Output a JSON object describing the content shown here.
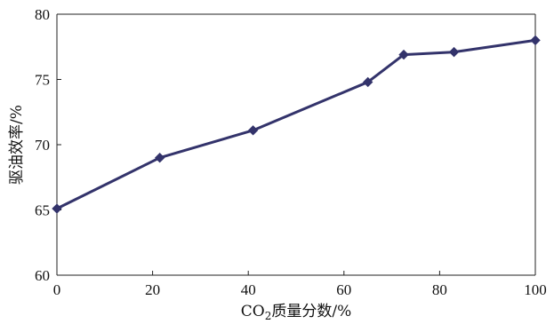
{
  "chart_data": {
    "type": "line",
    "title": "",
    "xlabel_prefix": "CO",
    "xlabel_subscript": "2",
    "xlabel_suffix": "质量分数/%",
    "ylabel": "驱油效率/%",
    "xlim": [
      0,
      100
    ],
    "ylim": [
      60,
      80
    ],
    "x_ticks": [
      0,
      20,
      40,
      60,
      80,
      100
    ],
    "y_ticks": [
      60,
      65,
      70,
      75,
      80
    ],
    "x_tick_labels": [
      "0",
      "20",
      "40",
      "60",
      "80",
      "100"
    ],
    "y_tick_labels": [
      "60",
      "65",
      "70",
      "75",
      "80"
    ],
    "grid": false,
    "legend": "none",
    "series": [
      {
        "x": [
          0,
          21.5,
          41,
          65,
          72.5,
          83,
          100
        ],
        "values": [
          65.1,
          69.0,
          71.1,
          74.8,
          76.9,
          77.1,
          78.0
        ],
        "color": "#33336b",
        "marker": "diamond"
      }
    ]
  }
}
